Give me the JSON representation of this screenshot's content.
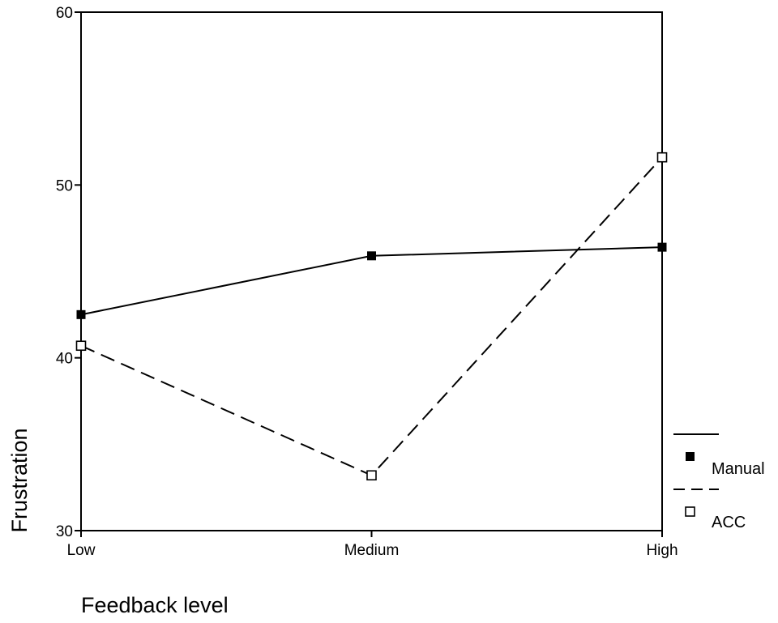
{
  "chart_data": {
    "type": "line",
    "title": "",
    "xlabel": "Feedback level",
    "ylabel": "Frustration",
    "categories": [
      "Low",
      "Medium",
      "High"
    ],
    "ylim": [
      30,
      60
    ],
    "yticks": [
      "30",
      "40",
      "50",
      "60"
    ],
    "grid": false,
    "legend_position": "right",
    "series": [
      {
        "name": "Manual",
        "values": [
          42.5,
          45.9,
          46.4
        ],
        "line_style": "solid",
        "marker": "filled-square",
        "color": "#000000"
      },
      {
        "name": "ACC",
        "values": [
          40.7,
          33.2,
          51.6
        ],
        "line_style": "dashed",
        "marker": "open-square",
        "color": "#000000"
      }
    ]
  }
}
